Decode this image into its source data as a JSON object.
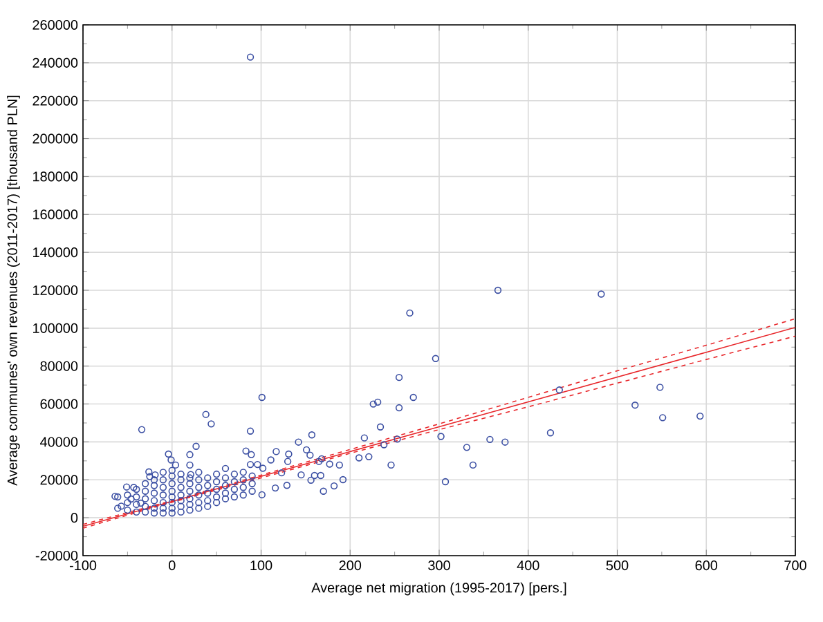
{
  "chart_data": {
    "type": "scatter",
    "xlabel": "Average net migration (1995-2017) [pers.]",
    "ylabel": "Average communes' own revenues (2011-2017) [thousand PLN]",
    "xlim": [
      -100,
      700
    ],
    "xticks": [
      -100,
      0,
      100,
      200,
      300,
      400,
      500,
      600,
      700
    ],
    "ylim": [
      -20000,
      260000
    ],
    "yticks": [
      -20000,
      0,
      20000,
      40000,
      60000,
      80000,
      100000,
      120000,
      140000,
      160000,
      180000,
      200000,
      220000,
      240000,
      260000
    ],
    "grid": true,
    "series": [
      {
        "color": "#3b4fa3",
        "marker": "circle",
        "x": [
          88,
          366,
          482,
          267,
          296,
          255,
          271,
          255,
          226,
          231,
          435,
          548,
          520,
          551,
          593,
          101,
          38,
          44,
          -34,
          88,
          425,
          357,
          374,
          302,
          331,
          338,
          307,
          253,
          234,
          238,
          246,
          216,
          221,
          210,
          192,
          188,
          182,
          170,
          177,
          168,
          167,
          157,
          142,
          151,
          155,
          145,
          156,
          160,
          165,
          131,
          130,
          129,
          117,
          116,
          111,
          123,
          101,
          102,
          96,
          83,
          89,
          88,
          27,
          20,
          -4,
          -1,
          4,
          20,
          21,
          -25,
          -19,
          -26,
          -43,
          -51,
          -64,
          -61,
          -61,
          -57,
          -46,
          -35,
          -50,
          -50,
          -50,
          -40,
          -40,
          -40,
          -40,
          -30,
          -30,
          -30,
          -30,
          -30,
          -20,
          -20,
          -20,
          -20,
          -20,
          -20,
          -10,
          -10,
          -10,
          -10,
          -10,
          -10,
          -10,
          0,
          0,
          0,
          0,
          0,
          0,
          0,
          0,
          10,
          10,
          10,
          10,
          10,
          10,
          10,
          20,
          20,
          20,
          20,
          20,
          20,
          30,
          30,
          30,
          30,
          30,
          30,
          40,
          40,
          40,
          40,
          40,
          50,
          50,
          50,
          50,
          50,
          60,
          60,
          60,
          60,
          60,
          70,
          70,
          70,
          70,
          80,
          80,
          80,
          80,
          90,
          90,
          90
        ],
        "values": [
          243000,
          120000,
          118000,
          108000,
          84000,
          74000,
          63500,
          58000,
          60000,
          61000,
          67400,
          68800,
          59400,
          52800,
          53600,
          63500,
          54500,
          49500,
          46500,
          45700,
          44800,
          41300,
          39900,
          42900,
          37100,
          27800,
          19000,
          41500,
          47900,
          38500,
          27800,
          42100,
          32200,
          31600,
          20100,
          27800,
          16800,
          14000,
          28300,
          31100,
          22300,
          43700,
          39900,
          35800,
          33000,
          22600,
          19800,
          22300,
          29700,
          33600,
          29700,
          17100,
          34900,
          15700,
          30500,
          23700,
          12100,
          26100,
          28100,
          35200,
          33300,
          28100,
          37700,
          33300,
          33600,
          30500,
          27800,
          27800,
          22800,
          21700,
          22600,
          24200,
          16000,
          16200,
          11300,
          5000,
          11000,
          6100,
          9900,
          7700,
          4000,
          8000,
          12000,
          3000,
          7000,
          11000,
          15000,
          3000,
          6000,
          10000,
          14000,
          18000,
          2500,
          5000,
          9000,
          13000,
          17000,
          20000,
          2500,
          5000,
          8000,
          12000,
          16000,
          20000,
          24000,
          2500,
          5000,
          8000,
          11000,
          14000,
          18000,
          22000,
          25000,
          3000,
          6000,
          9000,
          12000,
          16000,
          20000,
          23000,
          4000,
          7000,
          10000,
          14000,
          18000,
          21000,
          5000,
          8000,
          12000,
          16000,
          20000,
          24000,
          6000,
          9000,
          13000,
          17000,
          21000,
          8000,
          11000,
          15000,
          19000,
          23000,
          10000,
          13000,
          17000,
          21000,
          26000,
          11000,
          15000,
          19000,
          23000,
          12000,
          16000,
          20000,
          24000,
          14000,
          18000,
          22000
        ]
      },
      {
        "type": "line",
        "color": "#e8262a",
        "marker": "none",
        "line_style": "solid",
        "x": [
          -100,
          0,
          100,
          200,
          300,
          400,
          500,
          600,
          700
        ],
        "values": [
          -4500,
          8600,
          21800,
          34900,
          48000,
          61100,
          74200,
          87300,
          100400
        ]
      },
      {
        "type": "line",
        "color": "#e8262a",
        "marker": "none",
        "line_style": "dashed",
        "x": [
          -100,
          0,
          100,
          200,
          300,
          400,
          500,
          600,
          700
        ],
        "values": [
          -5500,
          8200,
          21000,
          34000,
          46500,
          58500,
          71000,
          83500,
          95800
        ]
      },
      {
        "type": "line",
        "color": "#e8262a",
        "marker": "none",
        "line_style": "dashed",
        "x": [
          -100,
          0,
          100,
          200,
          300,
          400,
          500,
          600,
          700
        ],
        "values": [
          -3500,
          9000,
          22500,
          36000,
          49500,
          63500,
          77500,
          91000,
          105000
        ]
      }
    ]
  }
}
